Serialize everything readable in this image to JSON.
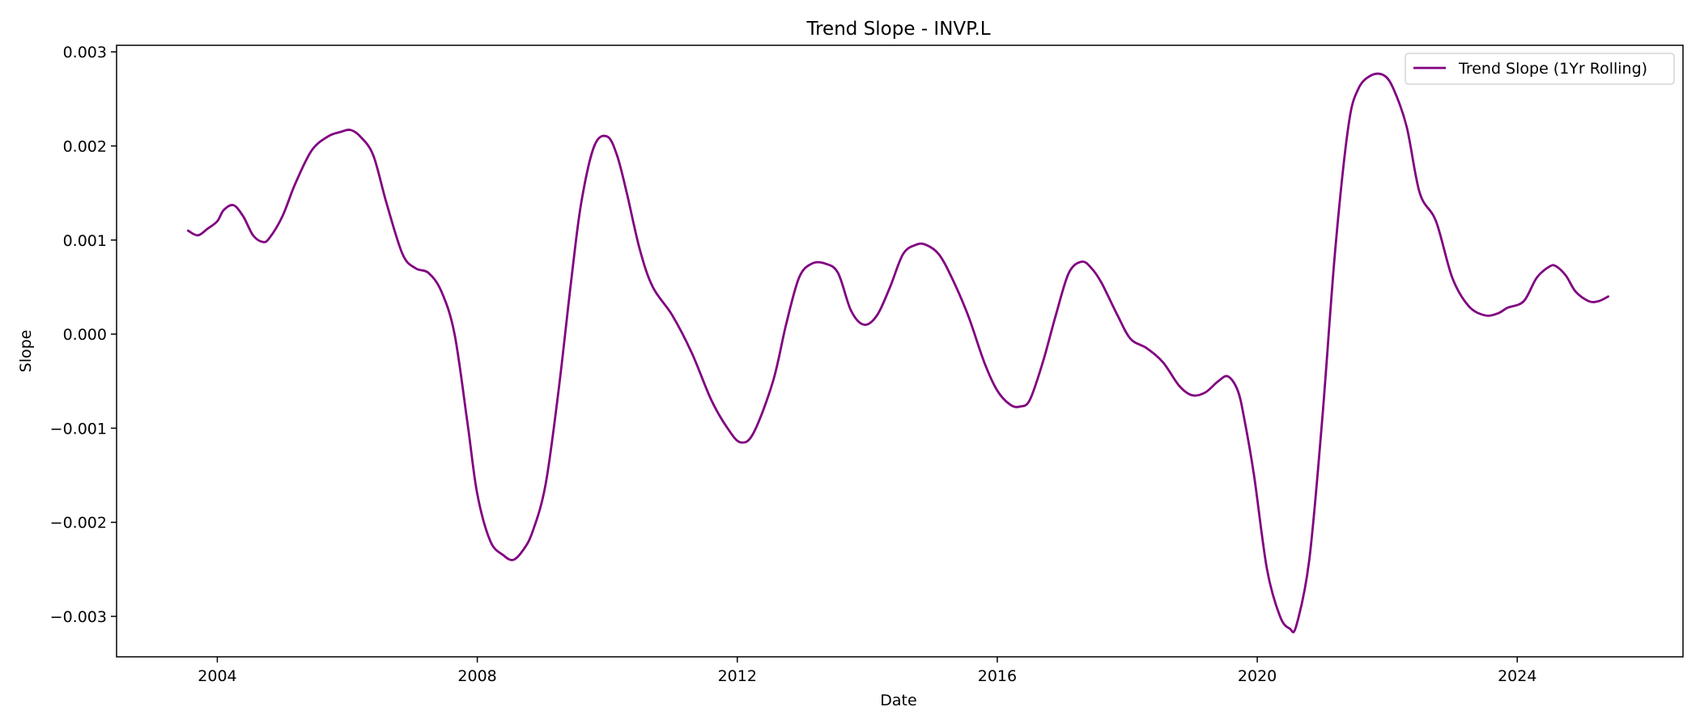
{
  "chart_data": {
    "type": "line",
    "title": "Trend Slope - INVP.L",
    "xlabel": "Date",
    "ylabel": "Slope",
    "xlim": [
      2002.45,
      2026.55
    ],
    "ylim": [
      -0.00343,
      0.00307
    ],
    "xticks": [
      2004,
      2008,
      2012,
      2016,
      2020,
      2024
    ],
    "xtick_labels": [
      "2004",
      "2008",
      "2012",
      "2016",
      "2020",
      "2024"
    ],
    "yticks": [
      -0.003,
      -0.002,
      -0.001,
      0.0,
      0.001,
      0.002,
      0.003
    ],
    "ytick_labels": [
      "−0.003",
      "−0.002",
      "−0.001",
      "0.000",
      "0.001",
      "0.002",
      "0.003"
    ],
    "grid": false,
    "legend_position": "top-right",
    "series": [
      {
        "name": "Trend Slope (1Yr Rolling)",
        "color": "#800080",
        "x": [
          2003.55,
          2003.7,
          2003.85,
          2004.0,
          2004.1,
          2004.25,
          2004.4,
          2004.55,
          2004.7,
          2004.8,
          2005.0,
          2005.2,
          2005.45,
          2005.7,
          2005.9,
          2006.05,
          2006.2,
          2006.4,
          2006.6,
          2006.85,
          2007.05,
          2007.25,
          2007.45,
          2007.65,
          2007.85,
          2008.0,
          2008.2,
          2008.4,
          2008.55,
          2008.7,
          2008.85,
          2009.05,
          2009.25,
          2009.45,
          2009.6,
          2009.8,
          2010.0,
          2010.15,
          2010.3,
          2010.5,
          2010.7,
          2011.0,
          2011.3,
          2011.6,
          2011.85,
          2012.05,
          2012.25,
          2012.55,
          2012.75,
          2012.95,
          2013.15,
          2013.35,
          2013.55,
          2013.75,
          2013.95,
          2014.15,
          2014.35,
          2014.55,
          2014.75,
          2014.9,
          2015.1,
          2015.3,
          2015.55,
          2015.8,
          2016.0,
          2016.2,
          2016.35,
          2016.5,
          2016.7,
          2016.9,
          2017.1,
          2017.3,
          2017.45,
          2017.6,
          2017.85,
          2018.05,
          2018.3,
          2018.55,
          2018.8,
          2019.0,
          2019.2,
          2019.4,
          2019.55,
          2019.7,
          2019.8,
          2019.95,
          2020.15,
          2020.35,
          2020.5,
          2020.6,
          2020.8,
          2021.0,
          2021.2,
          2021.4,
          2021.55,
          2021.75,
          2021.95,
          2022.1,
          2022.3,
          2022.5,
          2022.75,
          2023.0,
          2023.25,
          2023.5,
          2023.7,
          2023.85,
          2024.1,
          2024.3,
          2024.5,
          2024.6,
          2024.75,
          2024.9,
          2025.1,
          2025.25,
          2025.4
        ],
        "y": [
          0.0011,
          0.00105,
          0.00112,
          0.0012,
          0.00132,
          0.00137,
          0.00125,
          0.00105,
          0.00098,
          0.00102,
          0.00125,
          0.0016,
          0.00195,
          0.0021,
          0.00215,
          0.00217,
          0.0021,
          0.0019,
          0.0014,
          0.00085,
          0.0007,
          0.00065,
          0.00045,
          0.0,
          -0.00095,
          -0.0017,
          -0.0022,
          -0.00235,
          -0.0024,
          -0.0023,
          -0.0021,
          -0.0016,
          -0.0006,
          0.0006,
          0.0014,
          0.002,
          0.0021,
          0.0019,
          0.0015,
          0.0009,
          0.0005,
          0.0002,
          -0.0002,
          -0.0007,
          -0.001,
          -0.00115,
          -0.00105,
          -0.0005,
          0.0001,
          0.0006,
          0.00075,
          0.00075,
          0.00065,
          0.00025,
          0.0001,
          0.0002,
          0.0005,
          0.00085,
          0.00095,
          0.00095,
          0.00085,
          0.0006,
          0.0002,
          -0.0003,
          -0.0006,
          -0.00075,
          -0.00077,
          -0.0007,
          -0.0003,
          0.0002,
          0.00065,
          0.00077,
          0.0007,
          0.00055,
          0.0002,
          -5e-05,
          -0.00015,
          -0.0003,
          -0.00055,
          -0.00065,
          -0.00062,
          -0.0005,
          -0.00045,
          -0.0006,
          -0.0009,
          -0.0015,
          -0.0025,
          -0.003,
          -0.00313,
          -0.0031,
          -0.0024,
          -0.0009,
          0.0009,
          0.0022,
          0.0026,
          0.00275,
          0.00275,
          0.0026,
          0.0022,
          0.0015,
          0.0012,
          0.0006,
          0.0003,
          0.0002,
          0.00022,
          0.00028,
          0.00035,
          0.0006,
          0.00072,
          0.00072,
          0.00062,
          0.00045,
          0.00035,
          0.00035,
          0.0004
        ]
      }
    ]
  }
}
